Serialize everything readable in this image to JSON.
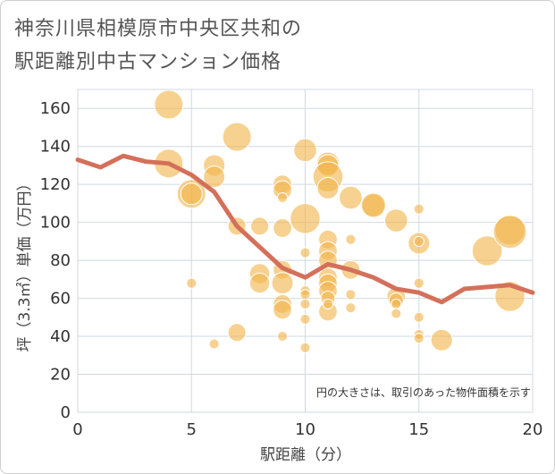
{
  "title_line1": "神奈川県相模原市中央区共和の",
  "title_line2": "駅距離別中古マンション価格",
  "chart_data": {
    "type": "scatter",
    "xlabel": "駅距離（分）",
    "ylabel": "坪（3.3㎡）単価（万円）",
    "xlim": [
      0,
      20
    ],
    "ylim": [
      0,
      170
    ],
    "xticks": [
      0,
      5,
      10,
      15,
      20
    ],
    "yticks": [
      0,
      20,
      40,
      60,
      80,
      100,
      120,
      140,
      160
    ],
    "grid": true,
    "note": "円の大きさは、取引のあった物件面積を示す",
    "colors": {
      "bubble": "#f2b54c",
      "line": "#d4705a",
      "grid": "#cfd8e0"
    },
    "bubbles": [
      {
        "x": 4,
        "y": 162,
        "s": 3
      },
      {
        "x": 4,
        "y": 131,
        "s": 3
      },
      {
        "x": 5,
        "y": 115,
        "s": 3
      },
      {
        "x": 5,
        "y": 115,
        "s": 2
      },
      {
        "x": 5,
        "y": 68,
        "s": 0.4
      },
      {
        "x": 6,
        "y": 130,
        "s": 2
      },
      {
        "x": 6,
        "y": 124,
        "s": 2
      },
      {
        "x": 6,
        "y": 36,
        "s": 0.4
      },
      {
        "x": 7,
        "y": 145,
        "s": 3
      },
      {
        "x": 7,
        "y": 98,
        "s": 1.5
      },
      {
        "x": 7,
        "y": 42,
        "s": 1.5
      },
      {
        "x": 8,
        "y": 98,
        "s": 1.5
      },
      {
        "x": 8,
        "y": 73,
        "s": 1.8
      },
      {
        "x": 8,
        "y": 68,
        "s": 1.8
      },
      {
        "x": 9,
        "y": 120,
        "s": 1.6
      },
      {
        "x": 9,
        "y": 117,
        "s": 1.6
      },
      {
        "x": 9,
        "y": 113,
        "s": 0.4
      },
      {
        "x": 9,
        "y": 97,
        "s": 1.6
      },
      {
        "x": 9,
        "y": 75,
        "s": 1.6
      },
      {
        "x": 9,
        "y": 68,
        "s": 2
      },
      {
        "x": 9,
        "y": 57,
        "s": 1.6
      },
      {
        "x": 9,
        "y": 54,
        "s": 1.6
      },
      {
        "x": 9,
        "y": 40,
        "s": 0.4
      },
      {
        "x": 10,
        "y": 138,
        "s": 2.2
      },
      {
        "x": 10,
        "y": 102,
        "s": 3.2
      },
      {
        "x": 10,
        "y": 84,
        "s": 0.4
      },
      {
        "x": 10,
        "y": 64,
        "s": 0.4
      },
      {
        "x": 10,
        "y": 62,
        "s": 0.4
      },
      {
        "x": 10,
        "y": 57,
        "s": 0.4
      },
      {
        "x": 10,
        "y": 49,
        "s": 0.4
      },
      {
        "x": 10,
        "y": 34,
        "s": 0.4
      },
      {
        "x": 11,
        "y": 131,
        "s": 2.2
      },
      {
        "x": 11,
        "y": 130,
        "s": 2
      },
      {
        "x": 11,
        "y": 124,
        "s": 3.2
      },
      {
        "x": 11,
        "y": 118,
        "s": 2
      },
      {
        "x": 11,
        "y": 91,
        "s": 1.6
      },
      {
        "x": 11,
        "y": 85,
        "s": 1.6
      },
      {
        "x": 11,
        "y": 80,
        "s": 1.6
      },
      {
        "x": 11,
        "y": 71,
        "s": 1.6
      },
      {
        "x": 11,
        "y": 68,
        "s": 1.6
      },
      {
        "x": 11,
        "y": 64,
        "s": 1.6
      },
      {
        "x": 11,
        "y": 60,
        "s": 1
      },
      {
        "x": 11,
        "y": 53,
        "s": 1.6
      },
      {
        "x": 11,
        "y": 57,
        "s": 0.4
      },
      {
        "x": 12,
        "y": 113,
        "s": 2.2
      },
      {
        "x": 12,
        "y": 91,
        "s": 0.4
      },
      {
        "x": 12,
        "y": 75,
        "s": 1.6
      },
      {
        "x": 12,
        "y": 62,
        "s": 0.4
      },
      {
        "x": 12,
        "y": 55,
        "s": 0.4
      },
      {
        "x": 13,
        "y": 109,
        "s": 2.2
      },
      {
        "x": 13,
        "y": 109,
        "s": 2.4
      },
      {
        "x": 14,
        "y": 101,
        "s": 2.2
      },
      {
        "x": 14,
        "y": 61,
        "s": 1.6
      },
      {
        "x": 14,
        "y": 59,
        "s": 1
      },
      {
        "x": 14,
        "y": 57,
        "s": 0.4
      },
      {
        "x": 14,
        "y": 52,
        "s": 0.4
      },
      {
        "x": 15,
        "y": 107,
        "s": 0.4
      },
      {
        "x": 15,
        "y": 89,
        "s": 2
      },
      {
        "x": 15,
        "y": 90,
        "s": 0.4
      },
      {
        "x": 15,
        "y": 68,
        "s": 0.4
      },
      {
        "x": 15,
        "y": 50,
        "s": 0.4
      },
      {
        "x": 15,
        "y": 41,
        "s": 0.4
      },
      {
        "x": 15,
        "y": 39,
        "s": 0.4
      },
      {
        "x": 16,
        "y": 38,
        "s": 2
      },
      {
        "x": 18,
        "y": 85,
        "s": 3.2
      },
      {
        "x": 19,
        "y": 96,
        "s": 3.2
      },
      {
        "x": 19,
        "y": 95,
        "s": 3.6
      },
      {
        "x": 19,
        "y": 61,
        "s": 3.2
      }
    ],
    "trend": [
      {
        "x": 0,
        "y": 133
      },
      {
        "x": 1,
        "y": 129
      },
      {
        "x": 2,
        "y": 135
      },
      {
        "x": 3,
        "y": 132
      },
      {
        "x": 4,
        "y": 131
      },
      {
        "x": 5,
        "y": 125
      },
      {
        "x": 6,
        "y": 116
      },
      {
        "x": 7,
        "y": 98
      },
      {
        "x": 8,
        "y": 87
      },
      {
        "x": 9,
        "y": 76
      },
      {
        "x": 10,
        "y": 71
      },
      {
        "x": 11,
        "y": 78
      },
      {
        "x": 12,
        "y": 75
      },
      {
        "x": 13,
        "y": 71
      },
      {
        "x": 14,
        "y": 65
      },
      {
        "x": 15,
        "y": 63
      },
      {
        "x": 16,
        "y": 58
      },
      {
        "x": 17,
        "y": 65
      },
      {
        "x": 18,
        "y": 66
      },
      {
        "x": 19,
        "y": 67
      },
      {
        "x": 20,
        "y": 63
      }
    ]
  }
}
